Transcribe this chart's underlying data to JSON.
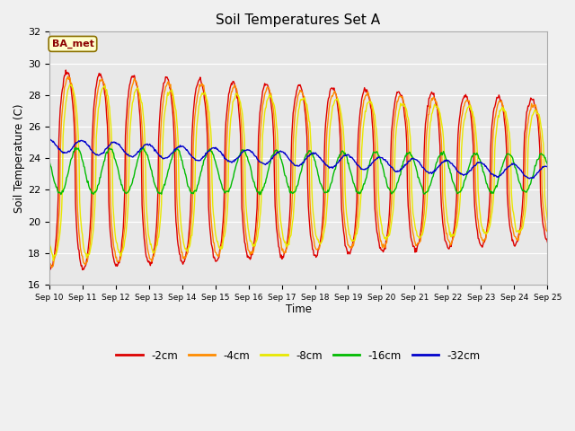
{
  "title": "Soil Temperatures Set A",
  "xlabel": "Time",
  "ylabel": "Soil Temperature (C)",
  "ylim": [
    16,
    32
  ],
  "xlim": [
    0,
    15
  ],
  "plot_bg": "#e8e8e8",
  "fig_bg": "#f0f0f0",
  "annotation_text": "BA_met",
  "annotation_bg": "#ffffcc",
  "annotation_border": "#8b7000",
  "annotation_text_color": "#8b0000",
  "colors": {
    "-2cm": "#dd0000",
    "-4cm": "#ff8c00",
    "-8cm": "#e8e800",
    "-16cm": "#00bb00",
    "-32cm": "#0000cc"
  },
  "legend_labels": [
    "-2cm",
    "-4cm",
    "-8cm",
    "-16cm",
    "-32cm"
  ],
  "x_tick_labels": [
    "Sep 10",
    "Sep 11",
    "Sep 12",
    "Sep 13",
    "Sep 14",
    "Sep 15",
    "Sep 16",
    "Sep 17",
    "Sep 18",
    "Sep 19",
    "Sep 20",
    "Sep 21",
    "Sep 22",
    "Sep 23",
    "Sep 24",
    "Sep 25"
  ],
  "num_days": 15,
  "samples_per_day": 48,
  "linewidth": 1.0
}
